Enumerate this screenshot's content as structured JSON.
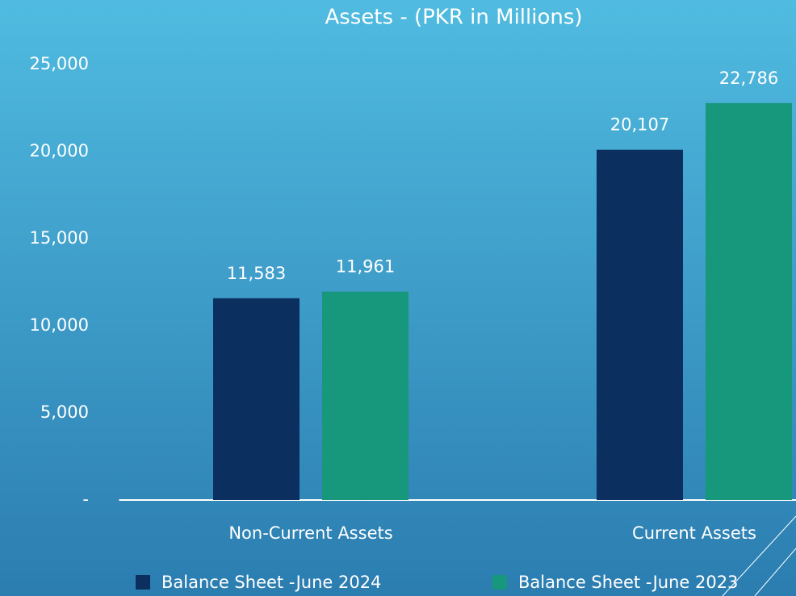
{
  "chart_data": {
    "type": "bar",
    "title": "Assets - (PKR in Millions)",
    "categories": [
      "Non-Current Assets",
      "Current Assets"
    ],
    "series": [
      {
        "name": "Balance Sheet -June 2024",
        "color": "#0b2f5e",
        "values": [
          11583,
          20107
        ],
        "value_labels": [
          "11,583",
          "20,107"
        ]
      },
      {
        "name": "Balance Sheet -June 2023",
        "color": "#17977b",
        "values": [
          11961,
          22786
        ],
        "value_labels": [
          "11,961",
          "22,786"
        ]
      }
    ],
    "ylim": [
      0,
      25000
    ],
    "yticks": [
      {
        "value": 0,
        "label": "-"
      },
      {
        "value": 5000,
        "label": "5,000"
      },
      {
        "value": 10000,
        "label": "10,000"
      },
      {
        "value": 15000,
        "label": "15,000"
      },
      {
        "value": 20000,
        "label": "20,000"
      },
      {
        "value": 25000,
        "label": "25,000"
      }
    ],
    "legend": "bottom"
  }
}
